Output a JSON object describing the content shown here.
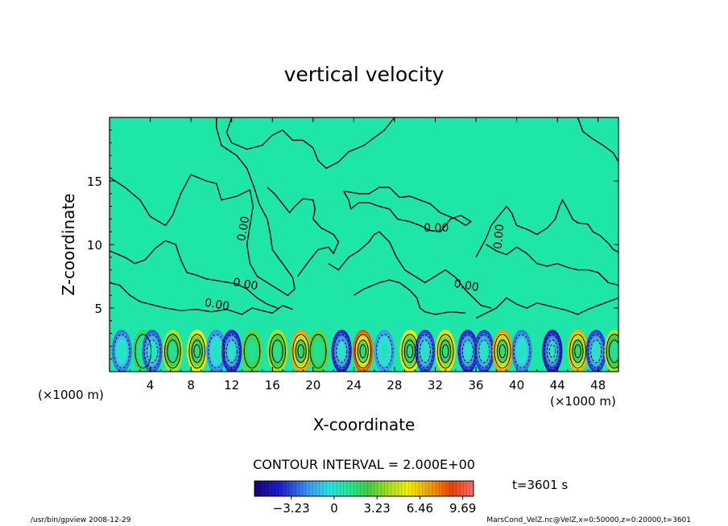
{
  "chart_data": {
    "type": "heatmap",
    "title": "vertical velocity",
    "xlabel": "X-coordinate",
    "ylabel": "Z-coordinate",
    "x_unit_label": "(×1000 m)",
    "y_unit_label": "(×1000 m)",
    "xlim": [
      0,
      50
    ],
    "ylim": [
      0,
      20
    ],
    "xticks": [
      4,
      8,
      12,
      16,
      20,
      24,
      28,
      32,
      36,
      40,
      44,
      48
    ],
    "yticks": [
      5,
      10,
      15
    ],
    "contour_interval_text": "CONTOUR INTERVAL = 2.000E+00",
    "contour_labels": [
      {
        "text": "0.00",
        "x": 13.5,
        "z": 11.2,
        "angle": -80
      },
      {
        "text": "0.00",
        "x": 13.3,
        "z": 6.6,
        "angle": 10
      },
      {
        "text": "0.00",
        "x": 10.5,
        "z": 5.0,
        "angle": 10
      },
      {
        "text": "0.00",
        "x": 32.1,
        "z": 11.0,
        "angle": 0
      },
      {
        "text": "0.00",
        "x": 38.6,
        "z": 10.6,
        "angle": -85
      },
      {
        "text": "0.00",
        "x": 35.0,
        "z": 6.5,
        "angle": 10
      }
    ],
    "colorbar": {
      "tick_labels": [
        "−3.23",
        "0",
        "3.23",
        "6.46",
        "9.69"
      ],
      "tick_values": [
        -3.23,
        0,
        3.23,
        6.46,
        9.69
      ],
      "range": [
        -6.0,
        10.5
      ]
    },
    "time_label": "t=3601 s",
    "wave_cells": [
      {
        "x": 1.2,
        "w": -2.5
      },
      {
        "x": 3.3,
        "w": 1.0
      },
      {
        "x": 4.2,
        "w": -3.0
      },
      {
        "x": 6.2,
        "w": 3.0
      },
      {
        "x": 8.6,
        "w": 4.5
      },
      {
        "x": 10.5,
        "w": -2.2
      },
      {
        "x": 12.0,
        "w": -4.0
      },
      {
        "x": 14.0,
        "w": 2.0
      },
      {
        "x": 16.5,
        "w": 3.0
      },
      {
        "x": 18.8,
        "w": 6.5
      },
      {
        "x": 20.5,
        "w": 2.0
      },
      {
        "x": 22.8,
        "w": -4.0
      },
      {
        "x": 24.9,
        "w": 8.0
      },
      {
        "x": 27.0,
        "w": -2.0
      },
      {
        "x": 29.5,
        "w": 4.5
      },
      {
        "x": 31.0,
        "w": -3.5
      },
      {
        "x": 33.0,
        "w": 5.0
      },
      {
        "x": 35.2,
        "w": -4.0
      },
      {
        "x": 36.8,
        "w": -3.5
      },
      {
        "x": 38.6,
        "w": 6.5
      },
      {
        "x": 40.5,
        "w": -2.5
      },
      {
        "x": 43.5,
        "w": -4.5
      },
      {
        "x": 46.0,
        "w": 6.0
      },
      {
        "x": 47.8,
        "w": -3.5
      },
      {
        "x": 49.6,
        "w": 3.0
      }
    ]
  },
  "footer": {
    "left": "/usr/bin/gpview   2008-12-29",
    "right": "MarsCond_VelZ.nc@VelZ,x=0:50000,z=0:20000,t=3601"
  }
}
